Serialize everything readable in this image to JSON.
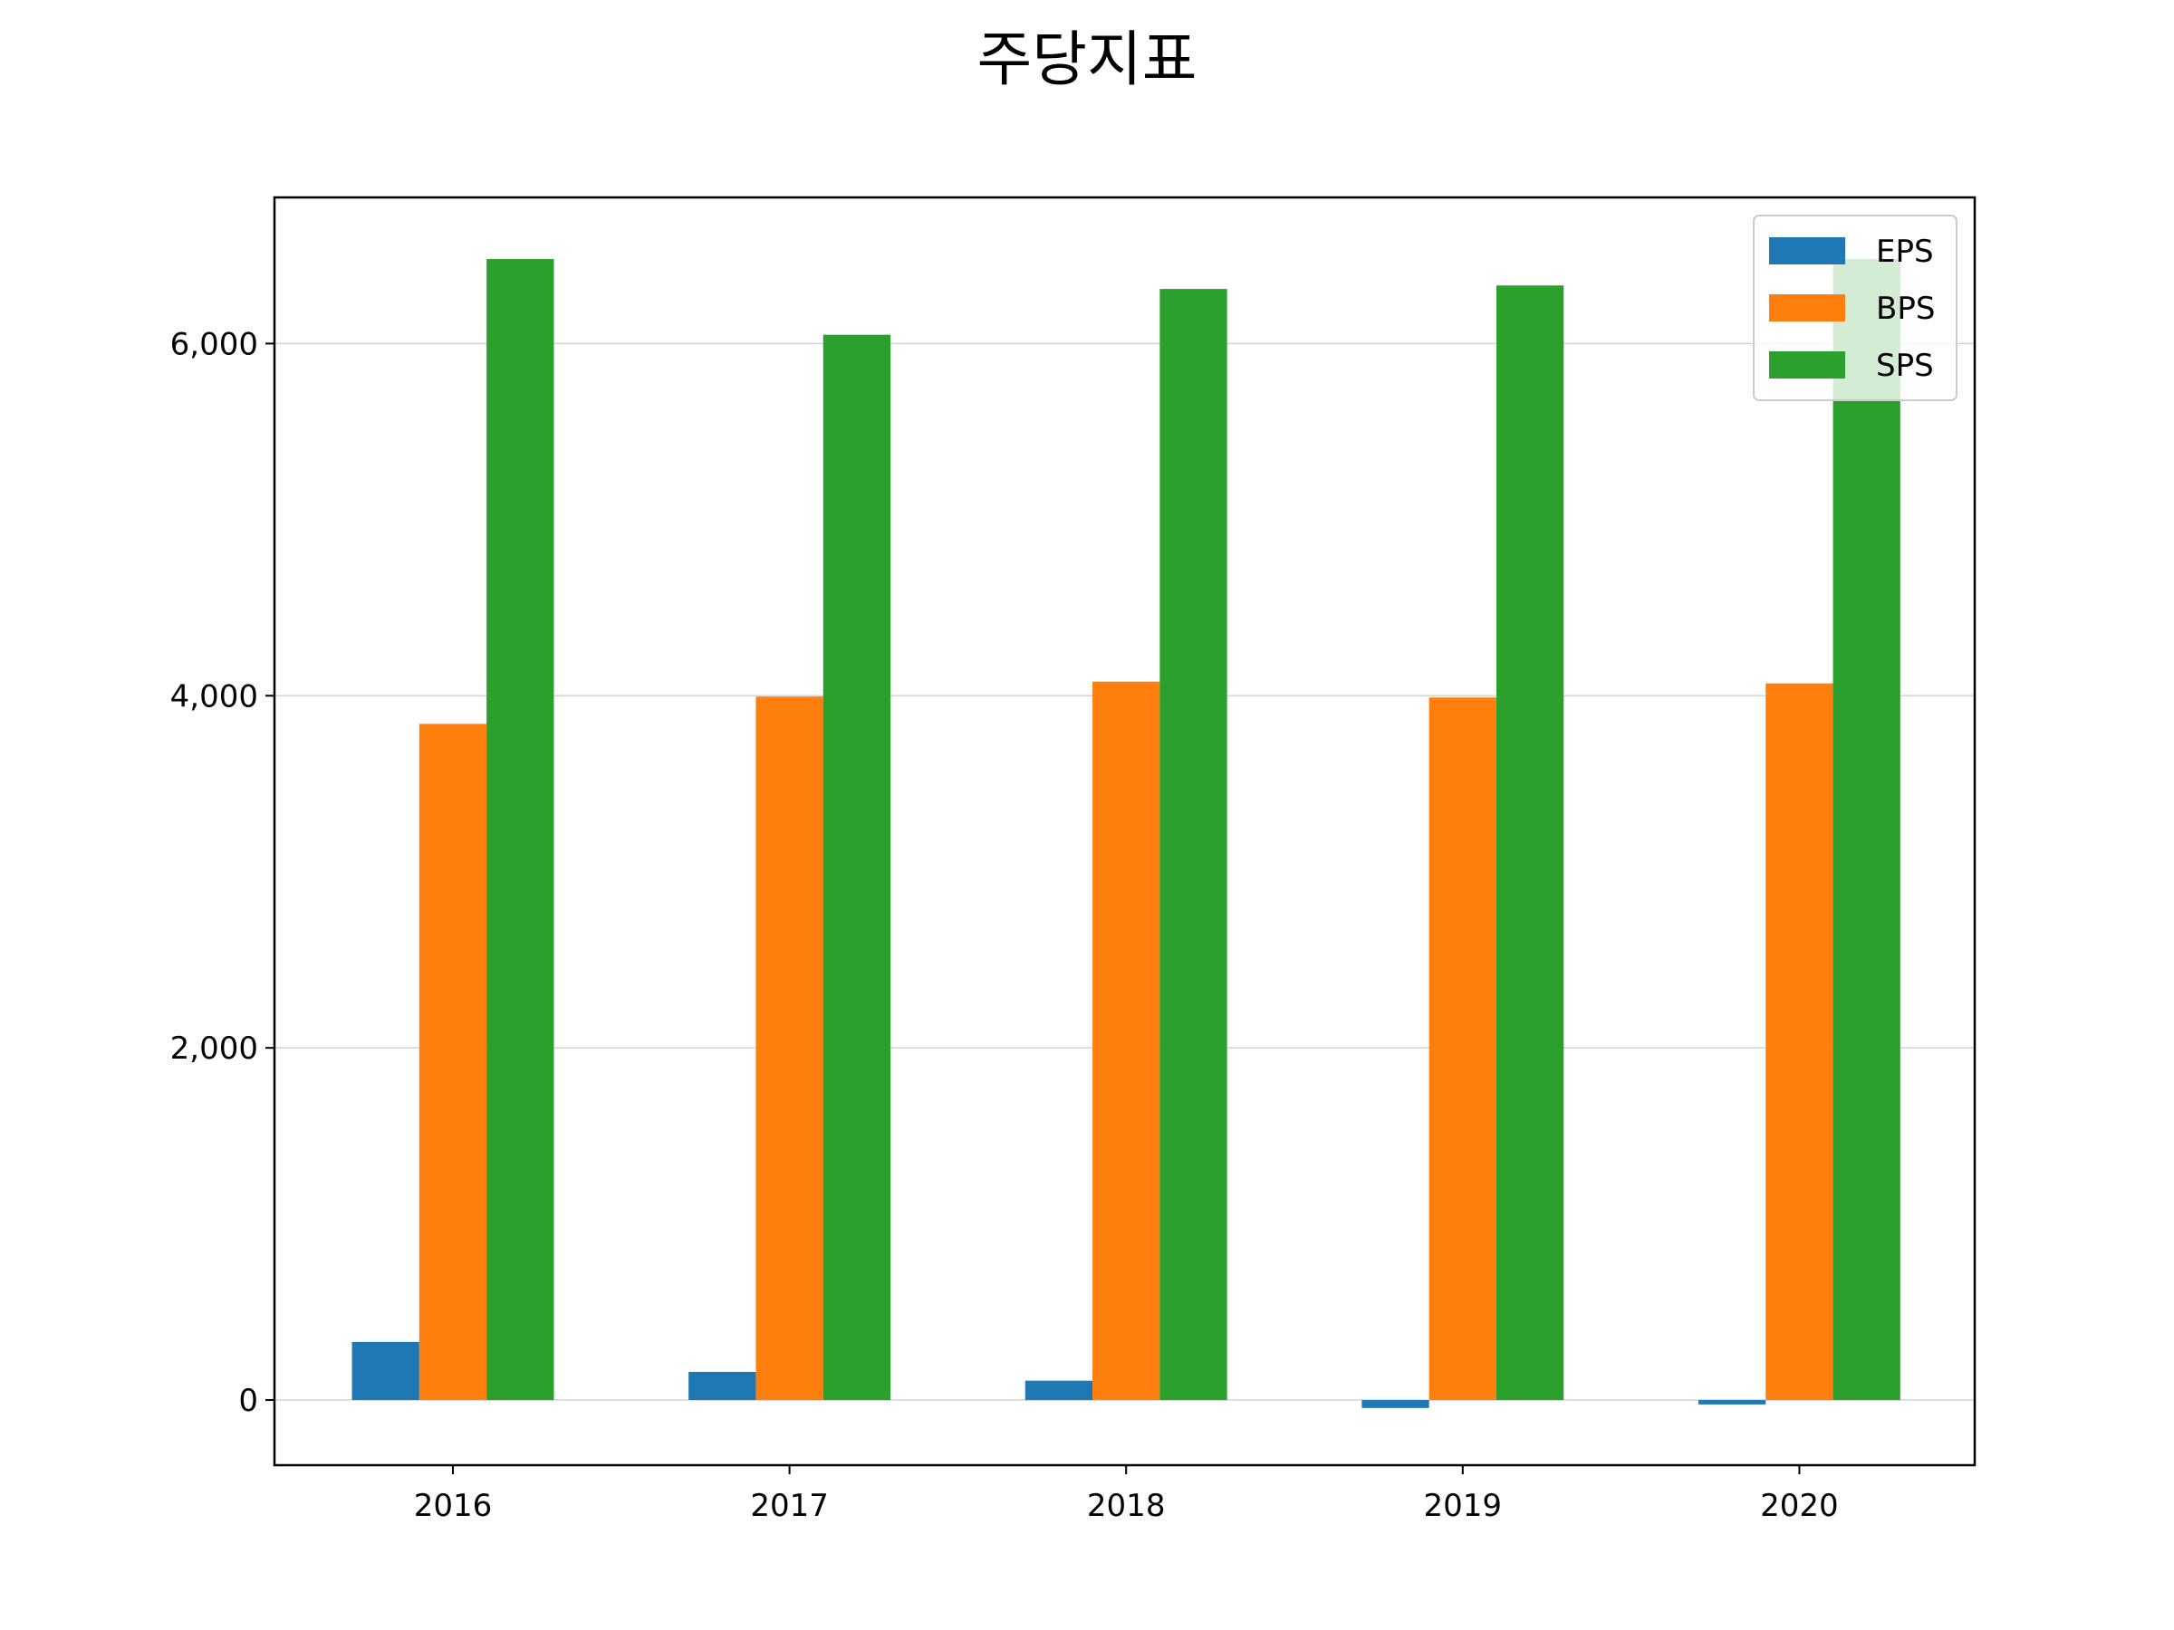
{
  "chart_data": {
    "type": "bar",
    "title": "주당지표",
    "xlabel": "",
    "ylabel": "",
    "categories": [
      "2016",
      "2017",
      "2018",
      "2019",
      "2020"
    ],
    "series": [
      {
        "name": "EPS",
        "color": "#1f77b4",
        "values": [
          330,
          160,
          110,
          -45,
          -25
        ]
      },
      {
        "name": "BPS",
        "color": "#ff7f0e",
        "values": [
          3840,
          3995,
          4080,
          3990,
          4070
        ]
      },
      {
        "name": "SPS",
        "color": "#2ca02c",
        "values": [
          6480,
          6050,
          6310,
          6330,
          6480
        ]
      }
    ],
    "ylim": [
      -370,
      6830
    ],
    "yticks": [
      0,
      2000,
      4000,
      6000
    ],
    "ytick_labels": [
      "0",
      "2,000",
      "4,000",
      "6,000"
    ],
    "grid": "y",
    "grid_color": "#d3d3d3",
    "legend_position": "top-right"
  }
}
